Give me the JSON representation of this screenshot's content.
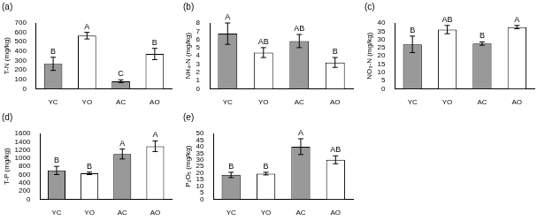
{
  "chart_data": [
    {
      "type": "bar",
      "title": "(a)",
      "y_label": "T-N (mg/kg)",
      "categories": [
        "YC",
        "YO",
        "AC",
        "AO"
      ],
      "values": [
        265,
        565,
        80,
        370
      ],
      "errors": [
        70,
        35,
        15,
        60
      ],
      "letters": [
        "B",
        "A",
        "C",
        "B"
      ],
      "colors": [
        "#999999",
        "#ffffff",
        "#999999",
        "#ffffff"
      ],
      "ylim": [
        0,
        700
      ],
      "yticks": [
        0,
        100,
        200,
        300,
        400,
        500,
        600,
        700
      ],
      "grid": false
    },
    {
      "type": "bar",
      "title": "(b)",
      "y_label": "NH₄-N (mg/kg)",
      "categories": [
        "YC",
        "YO",
        "AC",
        "AO"
      ],
      "values": [
        6.7,
        4.4,
        5.8,
        3.2
      ],
      "errors": [
        1.3,
        0.6,
        0.8,
        0.6
      ],
      "letters": [
        "A",
        "AB",
        "AB",
        "B"
      ],
      "colors": [
        "#999999",
        "#ffffff",
        "#999999",
        "#ffffff"
      ],
      "ylim": [
        0,
        8
      ],
      "yticks": [
        0,
        1,
        2,
        3,
        4,
        5,
        6,
        7,
        8
      ],
      "grid": false
    },
    {
      "type": "bar",
      "title": "(c)",
      "y_label": "NO₃-N (mg/kg)",
      "categories": [
        "YC",
        "YO",
        "AC",
        "AO"
      ],
      "values": [
        27,
        36,
        27.5,
        37.5
      ],
      "errors": [
        5,
        2.5,
        1,
        1
      ],
      "letters": [
        "B",
        "AB",
        "B",
        "A"
      ],
      "colors": [
        "#999999",
        "#ffffff",
        "#999999",
        "#ffffff"
      ],
      "ylim": [
        0,
        40
      ],
      "yticks": [
        0,
        5,
        10,
        15,
        20,
        25,
        30,
        35,
        40
      ],
      "grid": false
    },
    {
      "type": "bar",
      "title": "(d)",
      "y_label": "T-P (mg/kg)",
      "categories": [
        "YC",
        "YO",
        "AC",
        "AO"
      ],
      "values": [
        700,
        630,
        1100,
        1290
      ],
      "errors": [
        100,
        30,
        120,
        130
      ],
      "letters": [
        "B",
        "B",
        "A",
        "A"
      ],
      "colors": [
        "#999999",
        "#ffffff",
        "#999999",
        "#ffffff"
      ],
      "ylim": [
        0,
        1600
      ],
      "yticks": [
        0,
        200,
        400,
        600,
        800,
        1000,
        1200,
        1400,
        1600
      ],
      "grid": false
    },
    {
      "type": "bar",
      "title": "(e)",
      "y_label": "P₂O₅ (mg/kg)",
      "categories": [
        "YC",
        "YO",
        "AC",
        "AO"
      ],
      "values": [
        18.5,
        19.5,
        40,
        30
      ],
      "errors": [
        2,
        1,
        6,
        3
      ],
      "letters": [
        "B",
        "B",
        "A",
        "AB"
      ],
      "colors": [
        "#999999",
        "#ffffff",
        "#999999",
        "#ffffff"
      ],
      "ylim": [
        0,
        50
      ],
      "yticks": [
        0,
        5,
        10,
        15,
        20,
        25,
        30,
        35,
        40,
        45,
        50
      ],
      "grid": false
    }
  ]
}
